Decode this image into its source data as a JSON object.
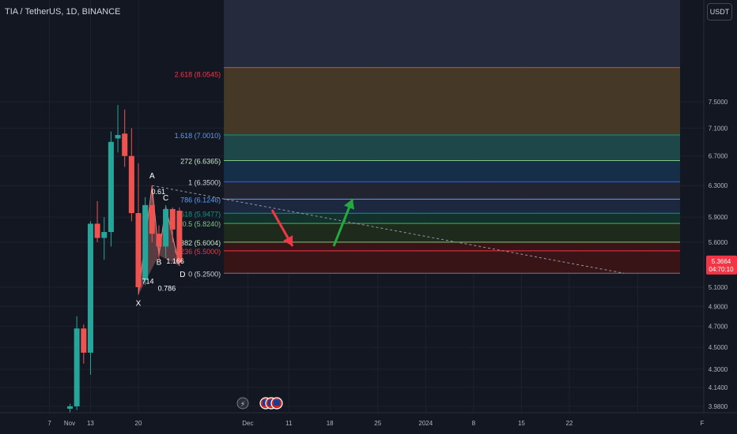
{
  "header": {
    "symbol_title": "TIA / TetherUS, 1D, BINANCE",
    "currency_button": "USDT"
  },
  "price_tag": {
    "price": "5.3664",
    "countdown": "04:70:10"
  },
  "colors": {
    "background": "#131722",
    "bull": "#26a69a",
    "bear": "#ef5350",
    "grid": "#1e222d",
    "axis_text": "#b2b5be"
  },
  "chart_data": {
    "type": "candlestick",
    "title": "TIA / TetherUS, 1D, BINANCE",
    "y_axis": {
      "scale": "log",
      "ylim": [
        3.96,
        9.0
      ],
      "tick_labels": [
        "7.5000",
        "7.1000",
        "6.7000",
        "6.3000",
        "5.9000",
        "5.6000",
        "5.1000",
        "4.9000",
        "4.7000",
        "4.5000",
        "4.3000",
        "4.1400",
        "3.9800"
      ],
      "tick_values": [
        7.5,
        7.1,
        6.7,
        6.3,
        5.9,
        5.6,
        5.1,
        4.9,
        4.7,
        4.5,
        4.3,
        4.14,
        3.98
      ]
    },
    "x_axis": {
      "tick_labels": [
        "Nov",
        "7",
        "13",
        "20",
        "Dec",
        "11",
        "18",
        "25",
        "2024",
        "8",
        "15",
        "22",
        "F"
      ],
      "tick_days": [
        -0.8,
        7,
        13,
        20,
        36,
        42,
        48,
        55,
        62,
        69,
        76,
        83,
        93
      ]
    },
    "candles": [
      {
        "day": 10,
        "o": 3.96,
        "h": 4.0,
        "l": 3.93,
        "c": 3.98
      },
      {
        "day": 11,
        "o": 3.98,
        "h": 4.8,
        "l": 3.95,
        "c": 4.68
      },
      {
        "day": 12,
        "o": 4.68,
        "h": 4.72,
        "l": 4.35,
        "c": 4.45
      },
      {
        "day": 13,
        "o": 4.45,
        "h": 5.85,
        "l": 4.25,
        "c": 5.82
      },
      {
        "day": 14,
        "o": 5.82,
        "h": 6.1,
        "l": 5.6,
        "c": 5.65
      },
      {
        "day": 15,
        "o": 5.65,
        "h": 5.9,
        "l": 5.4,
        "c": 5.72
      },
      {
        "day": 16,
        "o": 5.72,
        "h": 7.05,
        "l": 5.55,
        "c": 6.9
      },
      {
        "day": 17,
        "o": 6.95,
        "h": 7.45,
        "l": 6.75,
        "c": 7.0
      },
      {
        "day": 18,
        "o": 7.02,
        "h": 7.38,
        "l": 6.55,
        "c": 6.7
      },
      {
        "day": 19,
        "o": 6.7,
        "h": 7.1,
        "l": 5.85,
        "c": 5.95
      },
      {
        "day": 20,
        "o": 5.95,
        "h": 6.6,
        "l": 5.02,
        "c": 5.1
      },
      {
        "day": 21,
        "o": 5.18,
        "h": 6.15,
        "l": 5.12,
        "c": 6.05
      },
      {
        "day": 22,
        "o": 6.05,
        "h": 6.3,
        "l": 5.6,
        "c": 5.7
      },
      {
        "day": 23,
        "o": 5.7,
        "h": 5.8,
        "l": 5.4,
        "c": 5.55
      },
      {
        "day": 24,
        "o": 5.55,
        "h": 6.05,
        "l": 5.42,
        "c": 6.0
      },
      {
        "day": 25,
        "o": 6.0,
        "h": 6.02,
        "l": 5.6,
        "c": 5.75
      },
      {
        "day": 26,
        "o": 5.98,
        "h": 6.02,
        "l": 5.36,
        "c": 5.37
      }
    ],
    "fib_levels": [
      {
        "label": "2.618 (8.0545)",
        "ratio": 2.618,
        "value": 8.0545,
        "fill": "#252a3d",
        "line": "#f23645"
      },
      {
        "label": "1.618 (7.0010)",
        "ratio": 1.618,
        "value": 7.001,
        "fill": "#493a28",
        "line": "#089981"
      },
      {
        "label": "1.272 (6.6365)",
        "ratio": 1.272,
        "value": 6.6365,
        "fill": "#1d4a4c",
        "line": "#81c784"
      },
      {
        "label": "1 (6.3500)",
        "ratio": 1,
        "value": 6.35,
        "fill": "#14304a",
        "line": "#2962ff"
      },
      {
        "label": "0.786 (6.1246)",
        "ratio": 0.786,
        "value": 6.1246,
        "fill": "#232630",
        "line": "#5b9cf6"
      },
      {
        "label": "0.618 (5.9477)",
        "ratio": 0.618,
        "value": 5.9477,
        "fill": "#1b2942",
        "line": "#089981"
      },
      {
        "label": "0.5 (5.8240)",
        "ratio": 0.5,
        "value": 5.824,
        "fill": "#13332d",
        "line": "#4caf50"
      },
      {
        "label": "0.382 (5.6004)",
        "ratio": 0.382,
        "value": 5.6004,
        "fill": "#1d2b1c",
        "line": "#81c784"
      },
      {
        "label": "0.236 (5.5000)",
        "ratio": 0.236,
        "value": 5.5,
        "fill": "#3a1417",
        "line": "#f23645"
      },
      {
        "label": "0 (5.2500)",
        "ratio": 0,
        "value": 5.25,
        "fill": "none",
        "line": "#787b86"
      }
    ],
    "fib_visible_labels": [
      "2.618 (8.0545)",
      "1.618 (7.0010)",
      "272 (6.6365)",
      "1 (6.3500)",
      "786 (6.1246)",
      "618 (5.9477)",
      "0.5 (5.8240)",
      "382 (5.6004)",
      "0.236 (5.5000)",
      "0 (5.2500)"
    ],
    "harmonic_pattern": {
      "points": {
        "X": {
          "day": 20,
          "value": 5.02
        },
        "A": {
          "day": 22,
          "value": 6.3
        },
        "B": {
          "day": 23,
          "value": 5.45
        },
        "C": {
          "day": 24,
          "value": 6.03
        },
        "D": {
          "day": 26,
          "value": 5.33
        }
      },
      "ratio_labels": [
        "0.61",
        "714",
        "0.786",
        "1.166"
      ]
    },
    "trendline": {
      "from": {
        "day": 22,
        "value": 6.3
      },
      "to": {
        "day": 91,
        "value": 5.25
      }
    },
    "projection_arrows": [
      {
        "direction": "down",
        "color": "#f23645"
      },
      {
        "direction": "up",
        "color": "#22ab3c"
      }
    ]
  }
}
